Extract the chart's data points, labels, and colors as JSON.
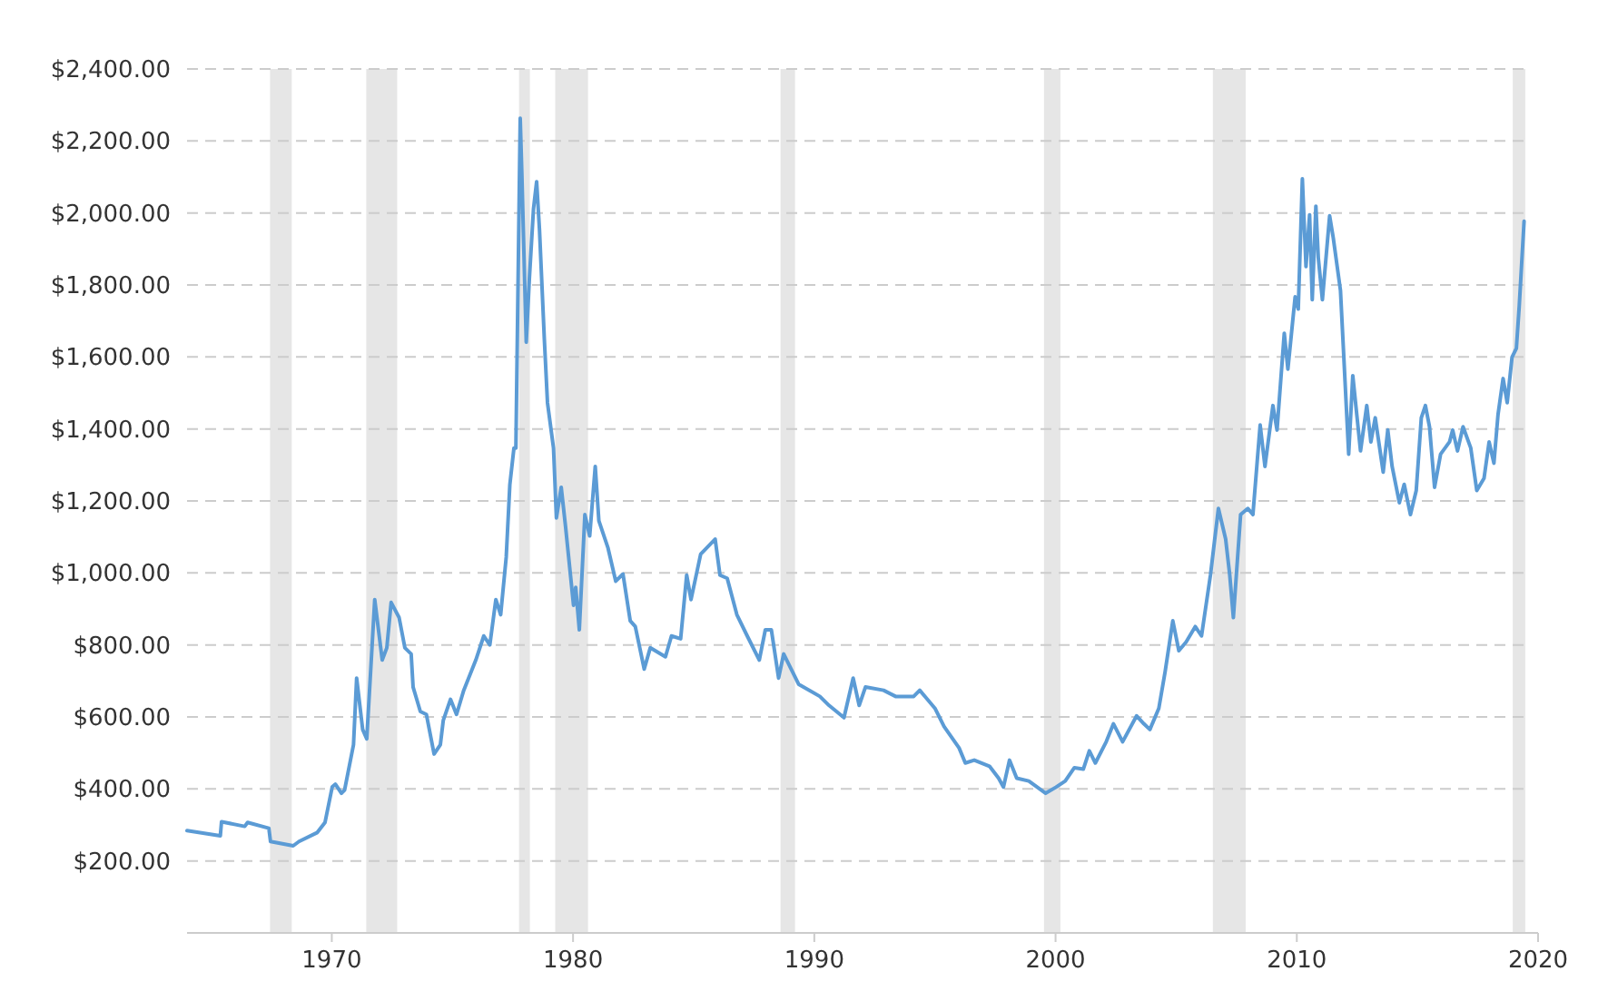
{
  "chart_data": {
    "type": "line",
    "xlim": [
      1964,
      2020
    ],
    "xticks": [
      1970,
      1980,
      1990,
      2000,
      2010,
      2020
    ],
    "ylim": [
      0,
      2400
    ],
    "yticks": [
      {
        "value": 200,
        "label": "$200.00"
      },
      {
        "value": 400,
        "label": "$400.00"
      },
      {
        "value": 600,
        "label": "$600.00"
      },
      {
        "value": 800,
        "label": "$800.00"
      },
      {
        "value": 1000,
        "label": "$1,000.00"
      },
      {
        "value": 1200,
        "label": "$1,200.00"
      },
      {
        "value": 1400,
        "label": "$1,400.00"
      },
      {
        "value": 1600,
        "label": "$1,600.00"
      },
      {
        "value": 1800,
        "label": "$1,800.00"
      },
      {
        "value": 2000,
        "label": "$2,000.00"
      },
      {
        "value": 2200,
        "label": "$2,200.00"
      },
      {
        "value": 2400,
        "label": "$2,400.00"
      }
    ],
    "grid": "y",
    "marker": "none",
    "line_style": "solid",
    "bands": [
      {
        "axis": "x",
        "from": 1967.44,
        "to": 1968.34,
        "color": "#e6e6e6"
      },
      {
        "axis": "x",
        "from": 1971.43,
        "to": 1972.71,
        "color": "#e6e6e6"
      },
      {
        "axis": "x",
        "from": 1977.76,
        "to": 1978.21,
        "color": "#e6e6e6"
      },
      {
        "axis": "x",
        "from": 1979.26,
        "to": 1980.62,
        "color": "#e6e6e6"
      },
      {
        "axis": "x",
        "from": 1988.6,
        "to": 1989.2,
        "color": "#e6e6e6"
      },
      {
        "axis": "x",
        "from": 1999.52,
        "to": 2000.2,
        "color": "#e6e6e6"
      },
      {
        "axis": "x",
        "from": 2006.52,
        "to": 2007.88,
        "color": "#e6e6e6"
      },
      {
        "axis": "x",
        "from": 2018.95,
        "to": 2019.47,
        "color": "#e6e6e6"
      }
    ],
    "series": [
      {
        "color": "#5b9bd5",
        "x": [
          1964.0,
          1965.38,
          1965.43,
          1966.39,
          1966.51,
          1967.39,
          1967.46,
          1968.4,
          1968.64,
          1969.4,
          1969.72,
          1970.02,
          1970.15,
          1970.4,
          1970.53,
          1970.9,
          1971.03,
          1971.28,
          1971.45,
          1971.78,
          1972.09,
          1972.28,
          1972.46,
          1972.79,
          1973.03,
          1973.29,
          1973.37,
          1973.67,
          1973.92,
          1974.24,
          1974.5,
          1974.62,
          1974.92,
          1975.17,
          1975.47,
          1975.97,
          1976.3,
          1976.55,
          1976.8,
          1977.0,
          1977.23,
          1977.38,
          1977.55,
          1977.63,
          1977.81,
          1977.88,
          1978.06,
          1978.19,
          1978.36,
          1978.49,
          1978.61,
          1978.81,
          1978.94,
          1979.19,
          1979.31,
          1979.51,
          1979.69,
          1980.02,
          1980.11,
          1980.26,
          1980.49,
          1980.69,
          1980.92,
          1981.07,
          1981.45,
          1981.77,
          1982.07,
          1982.37,
          1982.58,
          1982.95,
          1983.2,
          1983.83,
          1984.08,
          1984.46,
          1984.71,
          1984.89,
          1985.29,
          1985.89,
          1986.09,
          1986.39,
          1986.79,
          1987.22,
          1987.72,
          1987.97,
          1988.22,
          1988.52,
          1988.73,
          1989.35,
          1990.23,
          1990.61,
          1991.23,
          1991.61,
          1991.86,
          1992.12,
          1992.87,
          1993.37,
          1994.12,
          1994.37,
          1995.0,
          1995.38,
          1996.0,
          1996.26,
          1996.63,
          1997.26,
          1997.64,
          1997.84,
          1998.09,
          1998.39,
          1998.89,
          1999.59,
          2000.02,
          2000.4,
          2000.78,
          2001.15,
          2001.4,
          2001.65,
          2002.1,
          2002.4,
          2002.78,
          2003.36,
          2003.66,
          2003.91,
          2004.28,
          2004.54,
          2004.86,
          2005.11,
          2005.41,
          2005.79,
          2006.05,
          2006.42,
          2006.75,
          2007.05,
          2007.22,
          2007.37,
          2007.67,
          2007.97,
          2008.18,
          2008.48,
          2008.68,
          2009.01,
          2009.18,
          2009.48,
          2009.63,
          2009.93,
          2010.06,
          2010.23,
          2010.38,
          2010.53,
          2010.64,
          2010.79,
          2010.89,
          2011.06,
          2011.36,
          2011.51,
          2011.81,
          2012.15,
          2012.32,
          2012.64,
          2012.9,
          2013.07,
          2013.25,
          2013.58,
          2013.77,
          2013.95,
          2014.25,
          2014.45,
          2014.71,
          2014.95,
          2015.16,
          2015.33,
          2015.5,
          2015.71,
          2015.96,
          2016.33,
          2016.46,
          2016.66,
          2016.89,
          2017.21,
          2017.46,
          2017.76,
          2017.97,
          2018.17,
          2018.34,
          2018.55,
          2018.72,
          2018.92,
          2019.1,
          2019.22,
          2019.42
        ],
        "values": [
          284,
          270,
          309,
          296,
          307,
          291,
          254,
          242,
          254,
          279,
          307,
          406,
          413,
          388,
          397,
          523,
          708,
          565,
          539,
          926,
          758,
          792,
          918,
          876,
          792,
          775,
          683,
          615,
          607,
          497,
          523,
          590,
          649,
          607,
          674,
          758,
          825,
          800,
          926,
          884,
          1044,
          1245,
          1347,
          1347,
          2263,
          2104,
          1641,
          1818,
          2011,
          2087,
          1952,
          1649,
          1473,
          1347,
          1153,
          1238,
          1128,
          910,
          960,
          842,
          1162,
          1103,
          1296,
          1145,
          1069,
          977,
          997,
          867,
          851,
          733,
          792,
          767,
          825,
          817,
          994,
          926,
          1052,
          1094,
          994,
          985,
          884,
          825,
          758,
          842,
          842,
          708,
          775,
          691,
          657,
          632,
          598,
          708,
          632,
          683,
          674,
          657,
          657,
          674,
          624,
          573,
          514,
          472,
          480,
          463,
          430,
          405,
          480,
          430,
          422,
          388,
          405,
          422,
          459,
          455,
          506,
          472,
          531,
          581,
          531,
          603,
          581,
          565,
          624,
          725,
          867,
          784,
          808,
          851,
          825,
          994,
          1179,
          1094,
          994,
          876,
          1162,
          1179,
          1162,
          1411,
          1296,
          1465,
          1397,
          1666,
          1566,
          1767,
          1733,
          2095,
          1851,
          1995,
          1759,
          2019,
          1876,
          1759,
          1992,
          1931,
          1784,
          1330,
          1548,
          1339,
          1465,
          1364,
          1431,
          1280,
          1397,
          1296,
          1195,
          1246,
          1162,
          1229,
          1431,
          1465,
          1406,
          1238,
          1330,
          1364,
          1397,
          1339,
          1406,
          1347,
          1229,
          1263,
          1364,
          1305,
          1440,
          1540,
          1473,
          1599,
          1624,
          1742,
          1977
        ]
      }
    ]
  }
}
